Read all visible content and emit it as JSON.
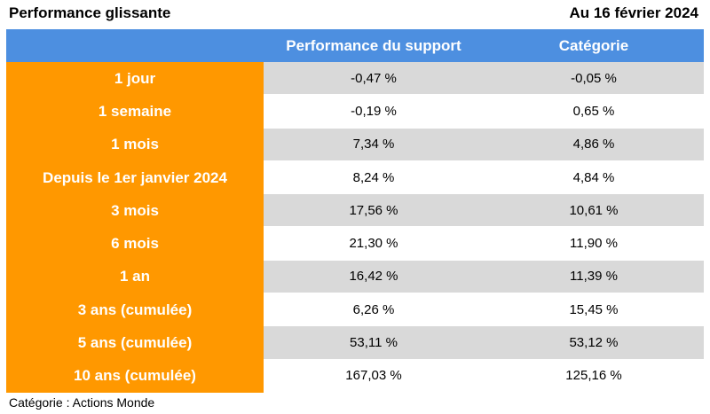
{
  "header": {
    "title": "Performance glissante",
    "date": "Au 16 février 2024"
  },
  "table": {
    "columns": [
      "",
      "Performance du support",
      "Catégorie"
    ],
    "rows": [
      {
        "label": "1 jour",
        "support": "-0,47 %",
        "categorie": "-0,05 %"
      },
      {
        "label": "1 semaine",
        "support": "-0,19 %",
        "categorie": "0,65 %"
      },
      {
        "label": "1 mois",
        "support": "7,34 %",
        "categorie": "4,86 %"
      },
      {
        "label": "Depuis le 1er janvier 2024",
        "support": "8,24 %",
        "categorie": "4,84 %"
      },
      {
        "label": "3 mois",
        "support": "17,56 %",
        "categorie": "10,61 %"
      },
      {
        "label": "6 mois",
        "support": "21,30 %",
        "categorie": "11,90 %"
      },
      {
        "label": "1 an",
        "support": "16,42 %",
        "categorie": "11,39 %"
      },
      {
        "label": "3 ans (cumulée)",
        "support": "6,26 %",
        "categorie": "15,45 %"
      },
      {
        "label": "5 ans (cumulée)",
        "support": "53,11 %",
        "categorie": "53,12 %"
      },
      {
        "label": "10 ans (cumulée)",
        "support": "167,03 %",
        "categorie": "125,16 %"
      }
    ]
  },
  "footer": {
    "note": "Catégorie : Actions Monde"
  },
  "colors": {
    "header_bg": "#4d8fe0",
    "label_bg": "#ff9800",
    "shade_bg": "#d9d9d9"
  }
}
